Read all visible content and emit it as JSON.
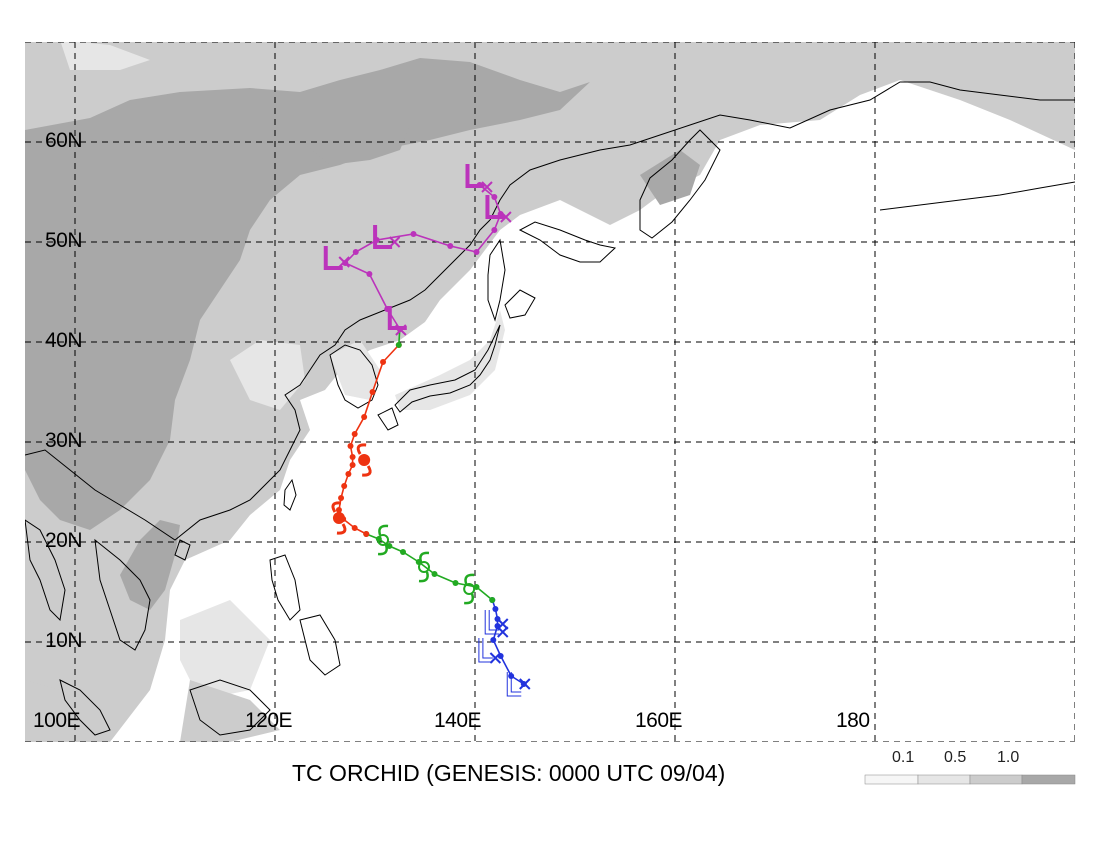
{
  "title": "TC ORCHID (GENESIS: 0000 UTC 09/04)",
  "lat_labels": [
    "60N",
    "50N",
    "40N",
    "30N",
    "20N",
    "10N"
  ],
  "lon_labels": [
    "100E",
    "120E",
    "140E",
    "160E",
    "180"
  ],
  "legend": {
    "values": [
      "0.1",
      "0.5",
      "1.0"
    ],
    "colors": [
      "#f6f6f6",
      "#e6e6e6",
      "#cccccc",
      "#a8a8a8"
    ]
  },
  "map_extent": {
    "lon_min": 100,
    "lon_max": 200,
    "lat_min": 3,
    "lat_max": 73
  },
  "track": {
    "segments": [
      {
        "stage": "blue",
        "color": "#2233dd",
        "points": [
          [
            147.5,
            8.8
          ],
          [
            146.3,
            9.6
          ],
          [
            145.3,
            11.6
          ],
          [
            144.6,
            13.2
          ],
          [
            145.0,
            14.6
          ],
          [
            145.0,
            15.3
          ],
          [
            144.8,
            16.3
          ],
          [
            144.5,
            17.2
          ]
        ]
      },
      {
        "stage": "green",
        "color": "#22aa22",
        "points": [
          [
            144.5,
            17.2
          ],
          [
            143.0,
            18.5
          ],
          [
            141.0,
            18.9
          ],
          [
            139.0,
            19.8
          ],
          [
            137.5,
            21.0
          ],
          [
            136.0,
            22.0
          ],
          [
            134.7,
            22.6
          ],
          [
            133.7,
            23.3
          ],
          [
            132.5,
            23.8
          ]
        ]
      },
      {
        "stage": "red",
        "color": "#ee3311",
        "points": [
          [
            132.5,
            23.8
          ],
          [
            131.4,
            24.4
          ],
          [
            130.3,
            25.3
          ],
          [
            129.9,
            26.2
          ],
          [
            130.1,
            27.4
          ],
          [
            130.4,
            28.6
          ],
          [
            130.8,
            29.8
          ],
          [
            131.2,
            30.7
          ],
          [
            131.2,
            31.5
          ],
          [
            131.0,
            32.6
          ],
          [
            131.4,
            33.8
          ],
          [
            132.3,
            35.5
          ],
          [
            133.1,
            38.0
          ],
          [
            134.1,
            41.0
          ],
          [
            135.6,
            42.7
          ]
        ]
      },
      {
        "stage": "green",
        "color": "#22aa22",
        "points": [
          [
            135.6,
            42.7
          ],
          [
            135.7,
            44.3
          ]
        ]
      },
      {
        "stage": "magenta",
        "color": "#bb33bb",
        "points": [
          [
            135.7,
            44.3
          ],
          [
            134.5,
            46.3
          ],
          [
            132.8,
            49.8
          ],
          [
            130.5,
            50.9
          ],
          [
            131.5,
            52.0
          ],
          [
            133.5,
            53.2
          ],
          [
            137.0,
            53.8
          ],
          [
            140.5,
            52.6
          ],
          [
            143.0,
            52.0
          ],
          [
            144.7,
            54.2
          ],
          [
            145.3,
            55.8
          ],
          [
            144.7,
            57.5
          ],
          [
            143.3,
            58.7
          ]
        ]
      }
    ],
    "typhoon_symbols": [
      {
        "lon": 132.3,
        "lat": 31.2,
        "color": "#ee3311",
        "kind": "filled"
      },
      {
        "lon": 129.9,
        "lat": 25.4,
        "color": "#ee3311",
        "kind": "filled"
      },
      {
        "lon": 134.1,
        "lat": 23.2,
        "color": "#22aa22",
        "kind": "open"
      },
      {
        "lon": 138.0,
        "lat": 20.5,
        "color": "#22aa22",
        "kind": "open"
      },
      {
        "lon": 142.3,
        "lat": 18.3,
        "color": "#22aa22",
        "kind": "open"
      }
    ],
    "x_markers": [
      {
        "lon": 145.5,
        "lat": 14.8,
        "color": "#2233dd"
      },
      {
        "lon": 145.5,
        "lat": 14.0,
        "color": "#2233dd"
      },
      {
        "lon": 144.8,
        "lat": 11.4,
        "color": "#2233dd"
      },
      {
        "lon": 147.6,
        "lat": 8.8,
        "color": "#2233dd"
      },
      {
        "lon": 135.8,
        "lat": 44.2,
        "color": "#bb33bb"
      },
      {
        "lon": 130.4,
        "lat": 51.0,
        "color": "#bb33bb"
      },
      {
        "lon": 135.2,
        "lat": 53.0,
        "color": "#bb33bb"
      },
      {
        "lon": 145.8,
        "lat": 55.5,
        "color": "#bb33bb"
      },
      {
        "lon": 144.0,
        "lat": 58.5,
        "color": "#bb33bb"
      }
    ],
    "low_symbols": [
      {
        "lon": 143.8,
        "lat": 12.0,
        "color": "#2233dd",
        "kind": "open-box"
      },
      {
        "lon": 144.4,
        "lat": 14.8,
        "color": "#2233dd",
        "kind": "open-box"
      },
      {
        "lon": 146.5,
        "lat": 8.6,
        "color": "#2233dd",
        "kind": "open-box"
      },
      {
        "lon": 135.6,
        "lat": 45.2,
        "color": "#bb33bb",
        "kind": "L"
      },
      {
        "lon": 129.5,
        "lat": 51.2,
        "color": "#bb33bb",
        "kind": "L"
      },
      {
        "lon": 134.2,
        "lat": 53.3,
        "color": "#bb33bb",
        "kind": "L"
      },
      {
        "lon": 144.9,
        "lat": 56.3,
        "color": "#bb33bb",
        "kind": "L"
      },
      {
        "lon": 143.0,
        "lat": 59.4,
        "color": "#bb33bb",
        "kind": "L"
      }
    ]
  }
}
